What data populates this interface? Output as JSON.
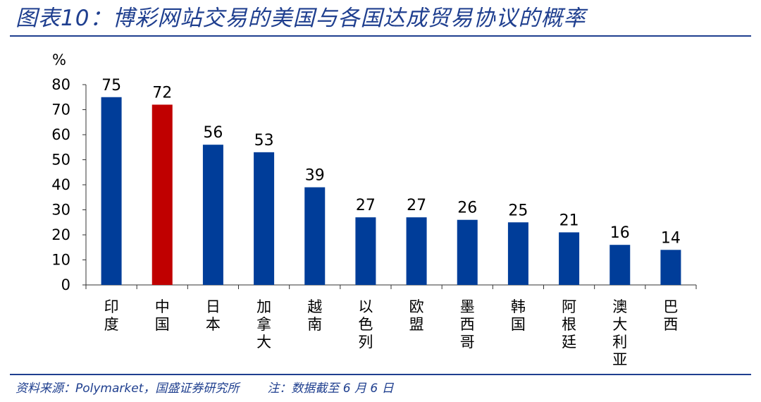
{
  "header": {
    "title": "图表10：博彩网站交易的美国与各国达成贸易协议的概率"
  },
  "footer": {
    "source": "资料来源：Polymarket，国盛证券研究所",
    "note": "注：数据截至 6 月 6 日"
  },
  "chart_data": {
    "type": "bar",
    "y_unit": "%",
    "categories": [
      "印度",
      "中国",
      "日本",
      "加拿大",
      "越南",
      "以色列",
      "欧盟",
      "墨西哥",
      "韩国",
      "阿根廷",
      "澳大利亚",
      "巴西"
    ],
    "values": [
      75,
      72,
      56,
      53,
      39,
      27,
      27,
      26,
      25,
      21,
      16,
      14
    ],
    "ylim": [
      0,
      80
    ],
    "yticks": [
      0,
      10,
      20,
      30,
      40,
      50,
      60,
      70,
      80
    ],
    "colors": {
      "default": "#003d99",
      "highlight": "#c00000"
    },
    "highlight_category": "中国",
    "grid": false,
    "legend": false
  }
}
